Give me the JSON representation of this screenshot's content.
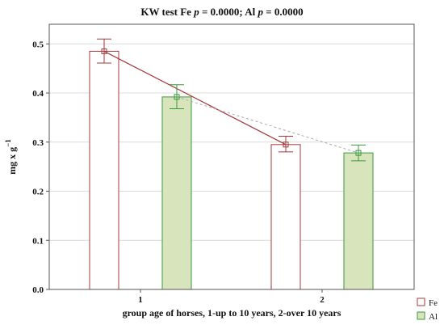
{
  "chart_data": {
    "type": "bar",
    "title": {
      "prefix": "KW test Fe ",
      "p1_label": "p",
      "p1_value": " = 0.0000; Al ",
      "p2_label": "p",
      "p2_value": " = 0.0000"
    },
    "xlabel": "group age of horses, 1-up to 10 years, 2-over 10 years",
    "ylabel": "mg x g",
    "ylabel_exponent": "−1",
    "categories": [
      "1",
      "2"
    ],
    "ylim": [
      0,
      0.54
    ],
    "yticks": [
      "0.0",
      "0.1",
      "0.2",
      "0.3",
      "0.4",
      "0.5"
    ],
    "ytick_values": [
      0,
      0.1,
      0.2,
      0.3,
      0.4,
      0.5
    ],
    "grid": true,
    "legend_position": "bottom-right",
    "series": [
      {
        "name": "Fe",
        "values": [
          0.485,
          0.295
        ],
        "error_low": [
          0.461,
          0.28
        ],
        "error_high": [
          0.51,
          0.312
        ],
        "bar_fill": "#ffffff",
        "color": "#a5383b",
        "line_style": "solid"
      },
      {
        "name": "Al",
        "values": [
          0.392,
          0.278
        ],
        "error_low": [
          0.368,
          0.262
        ],
        "error_high": [
          0.417,
          0.294
        ],
        "bar_fill": "#d7e4bc",
        "color": "#3a9a3a",
        "line_style": "dashed"
      }
    ]
  }
}
